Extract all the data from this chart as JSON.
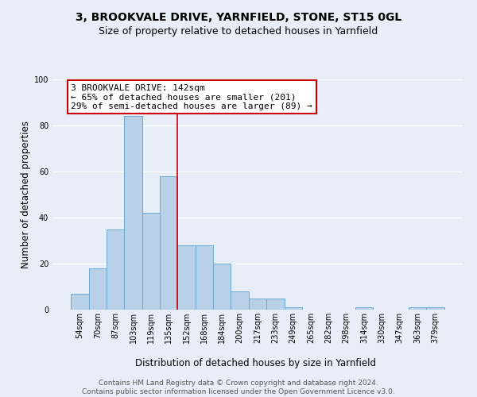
{
  "title": "3, BROOKVALE DRIVE, YARNFIELD, STONE, ST15 0GL",
  "subtitle": "Size of property relative to detached houses in Yarnfield",
  "xlabel": "Distribution of detached houses by size in Yarnfield",
  "ylabel": "Number of detached properties",
  "bin_labels": [
    "54sqm",
    "70sqm",
    "87sqm",
    "103sqm",
    "119sqm",
    "135sqm",
    "152sqm",
    "168sqm",
    "184sqm",
    "200sqm",
    "217sqm",
    "233sqm",
    "249sqm",
    "265sqm",
    "282sqm",
    "298sqm",
    "314sqm",
    "330sqm",
    "347sqm",
    "363sqm",
    "379sqm"
  ],
  "bar_heights": [
    7,
    18,
    35,
    84,
    42,
    58,
    28,
    28,
    20,
    8,
    5,
    5,
    1,
    0,
    0,
    0,
    1,
    0,
    0,
    1,
    1
  ],
  "bar_color": "#b8d0e8",
  "bar_edge_color": "#6aaad4",
  "background_color": "#e8eef8",
  "grid_color": "#ffffff",
  "vline_color": "#cc0000",
  "vline_x": 5.5,
  "annotation_text": "3 BROOKVALE DRIVE: 142sqm\n← 65% of detached houses are smaller (201)\n29% of semi-detached houses are larger (89) →",
  "annotation_box_facecolor": "#ffffff",
  "annotation_box_edgecolor": "#cc0000",
  "footer_text": "Contains HM Land Registry data © Crown copyright and database right 2024.\nContains public sector information licensed under the Open Government Licence v3.0.",
  "ylim": [
    0,
    100
  ],
  "yticks": [
    0,
    20,
    40,
    60,
    80,
    100
  ],
  "title_fontsize": 10,
  "subtitle_fontsize": 9,
  "ylabel_fontsize": 8.5,
  "xlabel_fontsize": 8.5,
  "tick_fontsize": 7,
  "annotation_fontsize": 8,
  "footer_fontsize": 6.5
}
